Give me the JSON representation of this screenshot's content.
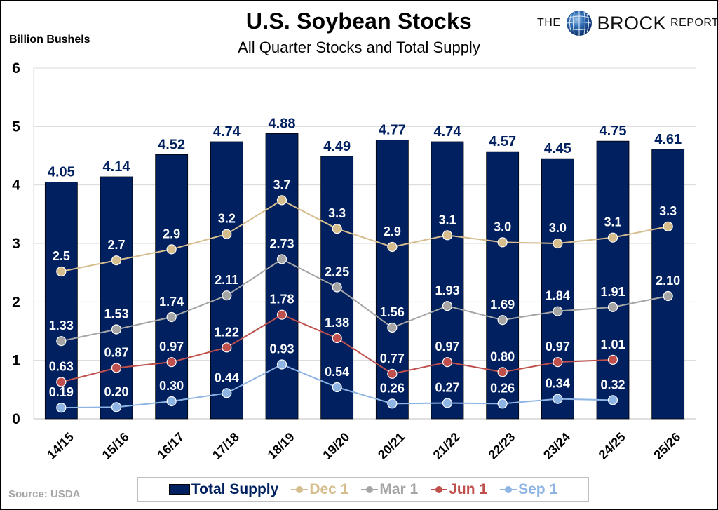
{
  "header": {
    "title": "U.S. Soybean Stocks",
    "subtitle": "All Quarter Stocks and Total Supply",
    "y_unit": "Billion Bushels"
  },
  "logo": {
    "prefix": "THE",
    "name": "BROCK",
    "suffix": "REPORT",
    "icon": "globe-icon"
  },
  "footer": {
    "source": "Source: USDA"
  },
  "colors": {
    "total_supply": "#002060",
    "dec1": "#D6BD8E",
    "mar1": "#A5A5A5",
    "jun1": "#C0504D",
    "sep1": "#8DB4E2",
    "grid": "#D9D9D9",
    "bar_label": "#002060",
    "point_label": "#FFFFFF"
  },
  "chart_data": {
    "type": "bar",
    "title": "U.S. Soybean Stocks",
    "subtitle": "All Quarter Stocks and Total Supply",
    "xlabel": "",
    "ylabel": "Billion Bushels",
    "ylim": [
      0,
      6
    ],
    "yticks": [
      0,
      1,
      2,
      3,
      4,
      5,
      6
    ],
    "grid": true,
    "legend_position": "bottom",
    "categories": [
      "14/15",
      "15/16",
      "16/17",
      "17/18",
      "18/19",
      "19/20",
      "20/21",
      "21/22",
      "22/23",
      "23/24",
      "24/25",
      "25/26"
    ],
    "series": [
      {
        "name": "Total Supply",
        "type": "bar",
        "color": "#002060",
        "values": [
          4.05,
          4.14,
          4.52,
          4.74,
          4.88,
          4.49,
          4.77,
          4.74,
          4.57,
          4.45,
          4.75,
          4.61
        ],
        "labels": [
          "4.05",
          "4.14",
          "4.52",
          "4.74",
          "4.88",
          "4.49",
          "4.77",
          "4.74",
          "4.57",
          "4.45",
          "4.75",
          "4.61"
        ]
      },
      {
        "name": "Dec 1",
        "type": "line",
        "color": "#D6BD8E",
        "values": [
          2.52,
          2.71,
          2.9,
          3.16,
          3.74,
          3.25,
          2.94,
          3.14,
          3.02,
          3.0,
          3.1,
          3.29
        ],
        "labels": [
          "2.5",
          "2.7",
          "2.9",
          "3.2",
          "3.7",
          "3.3",
          "2.9",
          "3.1",
          "3.0",
          "3.0",
          "3.1",
          "3.3"
        ]
      },
      {
        "name": "Mar 1",
        "type": "line",
        "color": "#A5A5A5",
        "values": [
          1.33,
          1.53,
          1.74,
          2.11,
          2.73,
          2.25,
          1.56,
          1.93,
          1.69,
          1.84,
          1.91,
          2.1
        ],
        "labels": [
          "1.33",
          "1.53",
          "1.74",
          "2.11",
          "2.73",
          "2.25",
          "1.56",
          "1.93",
          "1.69",
          "1.84",
          "1.91",
          "2.10"
        ]
      },
      {
        "name": "Jun 1",
        "type": "line",
        "color": "#C0504D",
        "values": [
          0.63,
          0.87,
          0.97,
          1.22,
          1.78,
          1.38,
          0.77,
          0.97,
          0.8,
          0.97,
          1.01,
          null
        ],
        "labels": [
          "0.63",
          "0.87",
          "0.97",
          "1.22",
          "1.78",
          "1.38",
          "0.77",
          "0.97",
          "0.80",
          "0.97",
          "1.01",
          null
        ]
      },
      {
        "name": "Sep 1",
        "type": "line",
        "color": "#8DB4E2",
        "values": [
          0.19,
          0.2,
          0.3,
          0.44,
          0.93,
          0.54,
          0.26,
          0.27,
          0.26,
          0.34,
          0.32,
          null
        ],
        "labels": [
          "0.19",
          "0.20",
          "0.30",
          "0.44",
          "0.93",
          "0.54",
          "0.26",
          "0.27",
          "0.26",
          "0.34",
          "0.32",
          null
        ]
      }
    ]
  },
  "legend": {
    "items": [
      {
        "label": "Total Supply",
        "marker": "bar"
      },
      {
        "label": "Dec 1",
        "marker": "line-dot"
      },
      {
        "label": "Mar 1",
        "marker": "line-dot"
      },
      {
        "label": "Jun 1",
        "marker": "line-dot"
      },
      {
        "label": "Sep 1",
        "marker": "line-dot"
      }
    ]
  }
}
